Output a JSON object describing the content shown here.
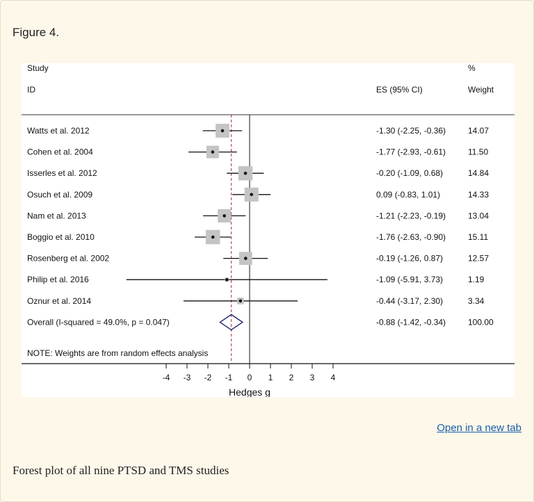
{
  "figure_label": "Figure 4.",
  "open_link": "Open in a new tab",
  "caption": "Forest plot of all nine PTSD and TMS studies",
  "colors": {
    "marker_box": "#c4c4c4",
    "diamond": "#20206e",
    "overall_line": "#b03038",
    "link": "#1a5ea8"
  },
  "chart_data": {
    "type": "forest",
    "header": {
      "col1_top": "Study",
      "col1_bottom": "ID",
      "es": "ES (95% CI)",
      "weight_top": "%",
      "weight_bottom": "Weight"
    },
    "studies": [
      {
        "name": "Watts et al. 2012",
        "es": -1.3,
        "lo": -2.25,
        "hi": -0.36,
        "es_text": "-1.30 (-2.25, -0.36)",
        "weight": 14.07,
        "weight_text": "14.07"
      },
      {
        "name": "Cohen et al. 2004",
        "es": -1.77,
        "lo": -2.93,
        "hi": -0.61,
        "es_text": "-1.77 (-2.93, -0.61)",
        "weight": 11.5,
        "weight_text": "11.50"
      },
      {
        "name": "Isserles et al. 2012",
        "es": -0.2,
        "lo": -1.09,
        "hi": 0.68,
        "es_text": "-0.20 (-1.09, 0.68)",
        "weight": 14.84,
        "weight_text": "14.84"
      },
      {
        "name": "Osuch et al. 2009",
        "es": 0.09,
        "lo": -0.83,
        "hi": 1.01,
        "es_text": "0.09 (-0.83, 1.01)",
        "weight": 14.33,
        "weight_text": "14.33"
      },
      {
        "name": "Nam et al. 2013",
        "es": -1.21,
        "lo": -2.23,
        "hi": -0.19,
        "es_text": "-1.21 (-2.23, -0.19)",
        "weight": 13.04,
        "weight_text": "13.04"
      },
      {
        "name": "Boggio et al. 2010",
        "es": -1.76,
        "lo": -2.63,
        "hi": -0.9,
        "es_text": "-1.76 (-2.63, -0.90)",
        "weight": 15.11,
        "weight_text": "15.11"
      },
      {
        "name": "Rosenberg et al. 2002",
        "es": -0.19,
        "lo": -1.26,
        "hi": 0.87,
        "es_text": "-0.19 (-1.26, 0.87)",
        "weight": 12.57,
        "weight_text": "12.57"
      },
      {
        "name": "Philip et al. 2016",
        "es": -1.09,
        "lo": -5.91,
        "hi": 3.73,
        "es_text": "-1.09 (-5.91, 3.73)",
        "weight": 1.19,
        "weight_text": "1.19"
      },
      {
        "name": "Oznur et al. 2014",
        "es": -0.44,
        "lo": -3.17,
        "hi": 2.3,
        "es_text": "-0.44 (-3.17, 2.30)",
        "weight": 3.34,
        "weight_text": "3.34"
      }
    ],
    "overall": {
      "label": "Overall  (I-squared = 49.0%, p = 0.047)",
      "es": -0.88,
      "lo": -1.42,
      "hi": -0.34,
      "es_text": "-0.88 (-1.42, -0.34)",
      "weight_text": "100.00"
    },
    "note": "NOTE: Weights are from random effects analysis",
    "xlabel": "Hedges g",
    "xlim": [
      -4,
      4
    ],
    "xticks": [
      "-4",
      "-3",
      "-2",
      "-1",
      "0",
      "1",
      "2",
      "3",
      "4"
    ],
    "null_line": 0
  }
}
